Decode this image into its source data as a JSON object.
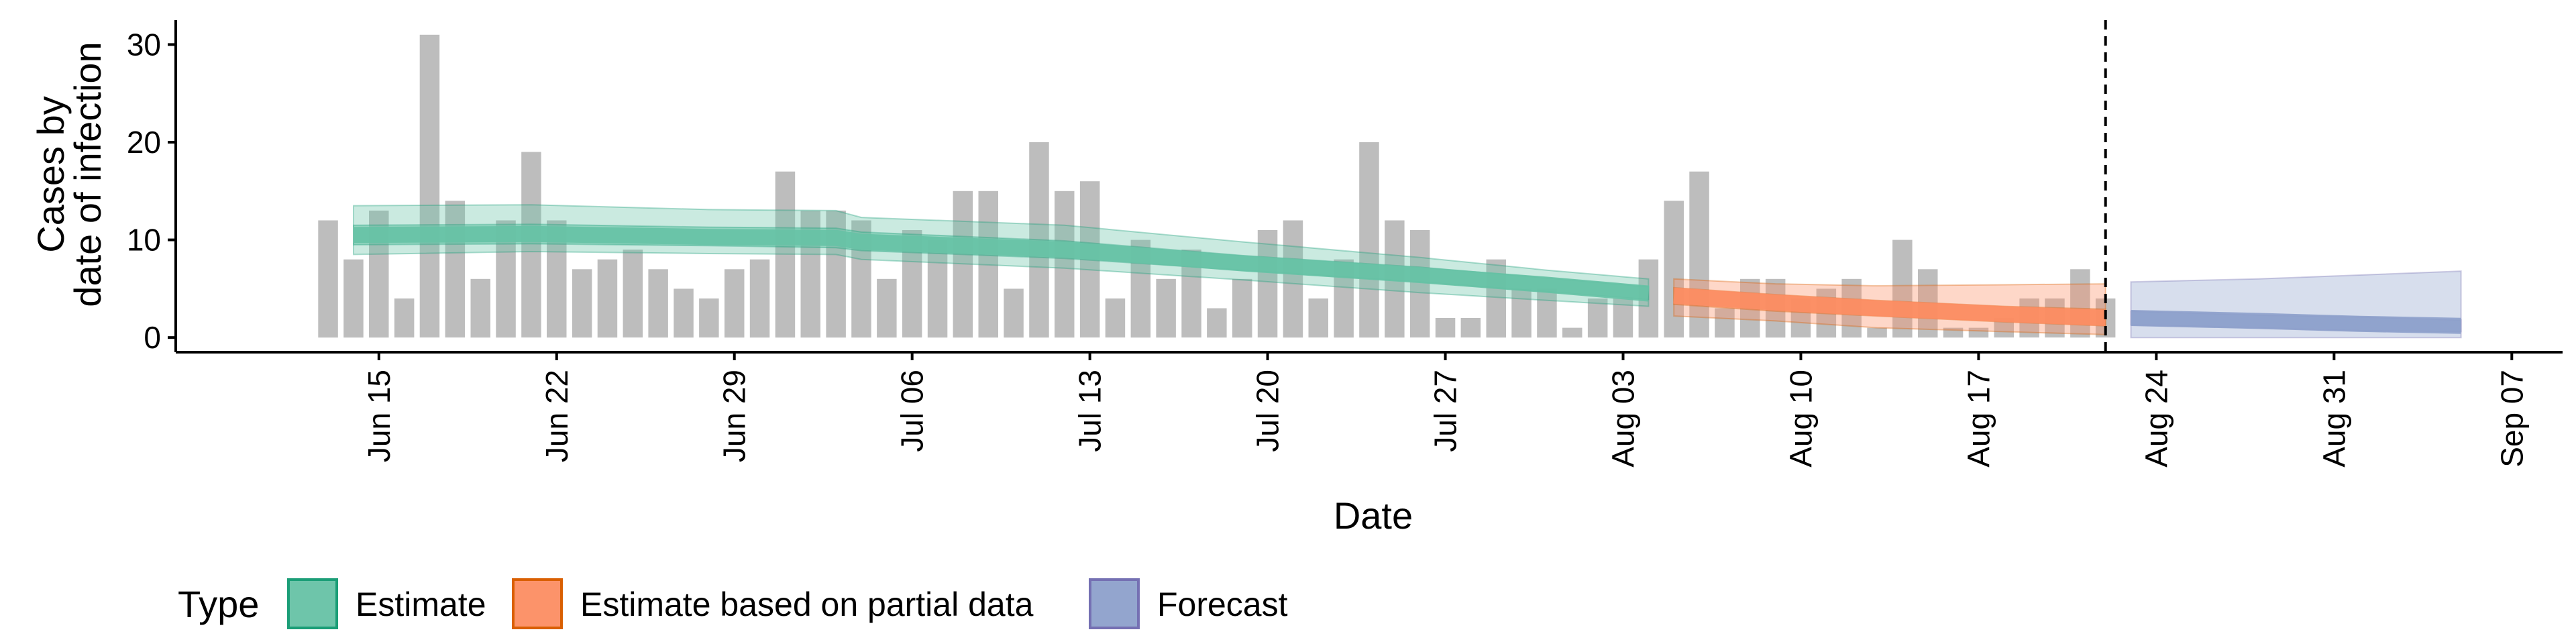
{
  "chart_data": {
    "type": "bar",
    "ylabel_lines": [
      "Cases by",
      "date of infection"
    ],
    "xlabel": "Date",
    "x_range": [
      "2020-06-07",
      "2020-09-09"
    ],
    "y_range": [
      -1.5,
      32.5
    ],
    "y_ticks": [
      0,
      10,
      20,
      30
    ],
    "x_ticks": [
      {
        "date": "2020-06-15",
        "label": "Jun 15"
      },
      {
        "date": "2020-06-22",
        "label": "Jun 22"
      },
      {
        "date": "2020-06-29",
        "label": "Jun 29"
      },
      {
        "date": "2020-07-06",
        "label": "Jul 06"
      },
      {
        "date": "2020-07-13",
        "label": "Jul 13"
      },
      {
        "date": "2020-07-20",
        "label": "Jul 20"
      },
      {
        "date": "2020-07-27",
        "label": "Jul 27"
      },
      {
        "date": "2020-08-03",
        "label": "Aug 03"
      },
      {
        "date": "2020-08-10",
        "label": "Aug 10"
      },
      {
        "date": "2020-08-17",
        "label": "Aug 17"
      },
      {
        "date": "2020-08-24",
        "label": "Aug 24"
      },
      {
        "date": "2020-08-31",
        "label": "Aug 31"
      },
      {
        "date": "2020-09-07",
        "label": "Sep 07"
      }
    ],
    "report_date": "2020-08-22",
    "bars": {
      "start_date": "2020-06-13",
      "color": "#bdbdbd",
      "values": [
        12,
        8,
        13,
        4,
        31,
        14,
        6,
        12,
        19,
        12,
        7,
        8,
        9,
        7,
        5,
        4,
        7,
        8,
        17,
        13,
        13,
        12,
        6,
        11,
        10,
        15,
        15,
        5,
        20,
        15,
        16,
        4,
        10,
        6,
        9,
        3,
        6,
        11,
        12,
        4,
        8,
        20,
        12,
        11,
        2,
        2,
        8,
        5,
        5,
        1,
        4,
        4,
        8,
        14,
        17,
        3,
        6,
        6,
        4,
        5,
        6,
        1,
        10,
        7,
        1,
        1,
        2,
        4,
        4,
        7,
        4
      ]
    },
    "series": [
      {
        "name": "Estimate",
        "color": "#1b9e77",
        "fill": "#66c2a5",
        "start_date": "2020-06-14",
        "end_date": "2020-08-04",
        "median": [
          [
            0,
            10.5
          ],
          [
            7,
            10.6
          ],
          [
            14,
            10.3
          ],
          [
            19,
            10.2
          ],
          [
            20,
            9.8
          ],
          [
            28,
            9.0
          ],
          [
            35,
            7.6
          ],
          [
            42,
            6.4
          ],
          [
            47,
            5.4
          ],
          [
            51,
            4.5
          ]
        ],
        "inner": [
          [
            0,
            9.5,
            11.5
          ],
          [
            7,
            9.6,
            11.6
          ],
          [
            14,
            9.4,
            11.3
          ],
          [
            19,
            9.2,
            11.2
          ],
          [
            20,
            8.9,
            10.8
          ],
          [
            28,
            8.1,
            9.9
          ],
          [
            35,
            6.9,
            8.4
          ],
          [
            42,
            5.7,
            7.2
          ],
          [
            47,
            4.7,
            6.1
          ],
          [
            51,
            3.9,
            5.2
          ]
        ],
        "outer": [
          [
            0,
            8.5,
            13.5
          ],
          [
            7,
            8.8,
            13.6
          ],
          [
            14,
            8.6,
            13.1
          ],
          [
            19,
            8.5,
            13.0
          ],
          [
            20,
            8.0,
            12.3
          ],
          [
            28,
            7.1,
            11.5
          ],
          [
            35,
            5.9,
            9.8
          ],
          [
            42,
            4.6,
            8.2
          ],
          [
            47,
            3.8,
            6.9
          ],
          [
            51,
            3.2,
            6.0
          ]
        ]
      },
      {
        "name": "Estimate based on partial data",
        "color": "#d95f02",
        "fill": "#fc8d62",
        "start_date": "2020-08-05",
        "end_date": "2020-08-22",
        "median": [
          [
            0,
            4.3
          ],
          [
            4,
            3.6
          ],
          [
            8,
            3.0
          ],
          [
            13,
            2.4
          ],
          [
            17,
            2.0
          ]
        ],
        "inner": [
          [
            0,
            3.4,
            5.1
          ],
          [
            4,
            2.7,
            4.4
          ],
          [
            8,
            2.2,
            3.8
          ],
          [
            13,
            1.6,
            3.2
          ],
          [
            17,
            1.2,
            2.9
          ]
        ],
        "outer": [
          [
            0,
            2.2,
            6.0
          ],
          [
            4,
            1.7,
            5.5
          ],
          [
            8,
            1.0,
            5.3
          ],
          [
            13,
            0.6,
            5.4
          ],
          [
            17,
            0.3,
            5.5
          ]
        ]
      },
      {
        "name": "Forecast",
        "color": "#7570b3",
        "fill": "#8da0cb",
        "start_date": "2020-08-23",
        "end_date": "2020-09-05",
        "median": [
          [
            0,
            2.0
          ],
          [
            5,
            1.7
          ],
          [
            9,
            1.4
          ],
          [
            13,
            1.2
          ]
        ],
        "inner": [
          [
            0,
            1.3,
            2.7
          ],
          [
            5,
            1.0,
            2.3
          ],
          [
            9,
            0.7,
            2.1
          ],
          [
            13,
            0.6,
            1.8
          ]
        ],
        "outer": [
          [
            0,
            0.0,
            5.7
          ],
          [
            5,
            0.0,
            6.0
          ],
          [
            9,
            0.0,
            6.4
          ],
          [
            13,
            0.0,
            6.8
          ]
        ]
      }
    ],
    "legend": {
      "title": "Type",
      "position": "bottom",
      "items": [
        "Estimate",
        "Estimate based on partial data",
        "Forecast"
      ]
    }
  }
}
